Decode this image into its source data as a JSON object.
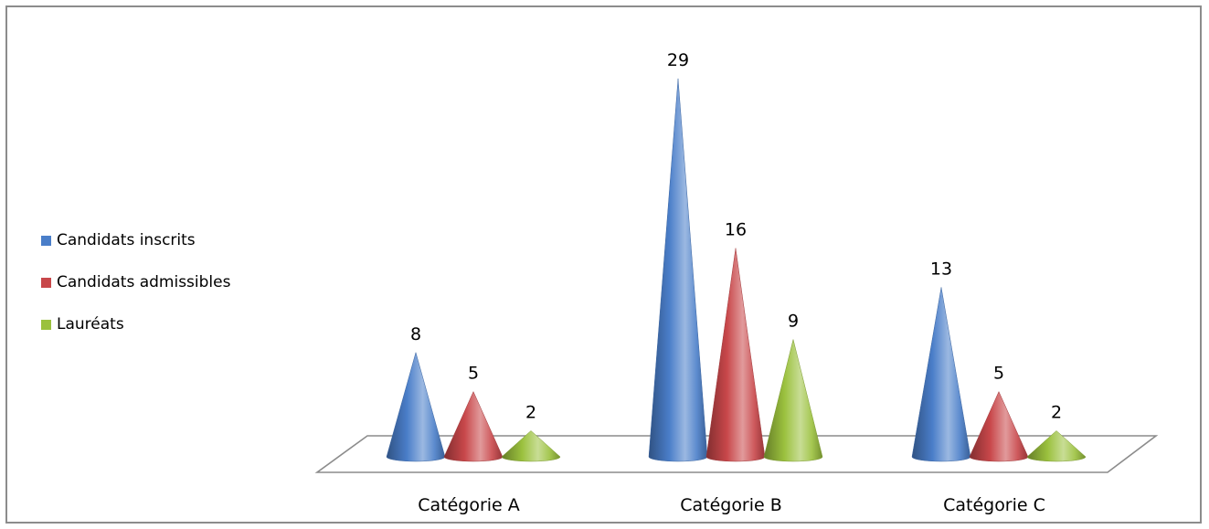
{
  "chart_data": {
    "type": "bar",
    "shape": "cone-3d",
    "title": "",
    "xlabel": "",
    "ylabel": "",
    "categories": [
      "Catégorie A",
      "Catégorie B",
      "Catégorie C"
    ],
    "series": [
      {
        "name": "Candidats inscrits",
        "values": [
          8,
          29,
          13
        ],
        "color": "#4a7ec9"
      },
      {
        "name": "Candidats admissibles",
        "values": [
          5,
          16,
          5
        ],
        "color": "#c8474a"
      },
      {
        "name": "Lauréats",
        "values": [
          2,
          9,
          2
        ],
        "color": "#9bc13e"
      }
    ],
    "legend_position": "left",
    "data_labels": true,
    "grid": false,
    "ylim": [
      0,
      29
    ]
  }
}
